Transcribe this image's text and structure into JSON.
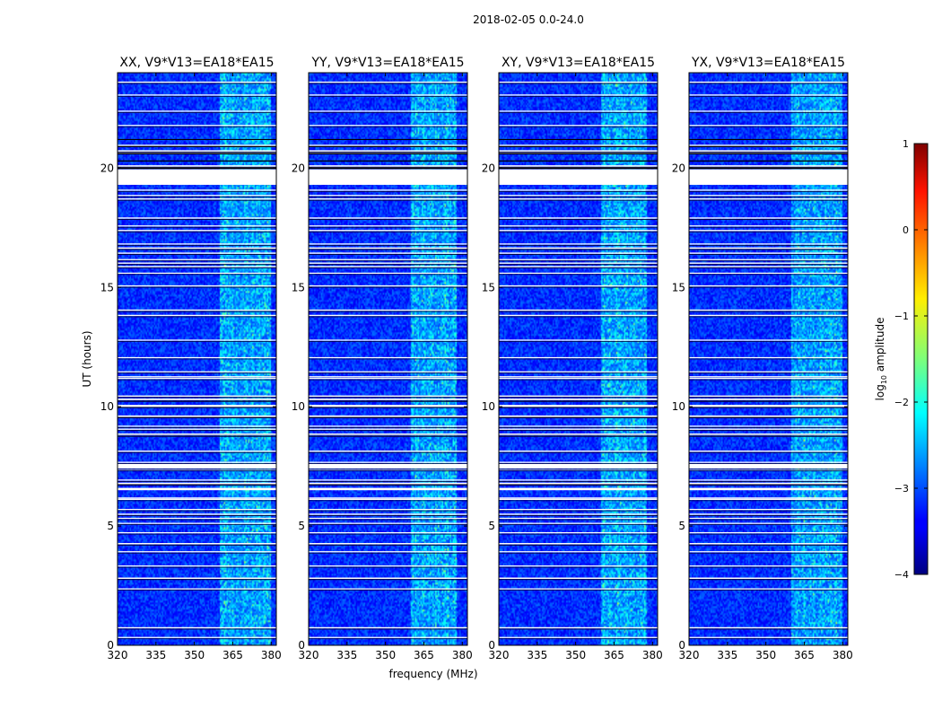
{
  "figure_title": "2018-02-05 0.0-24.0",
  "chart_data": {
    "type": "heatmap",
    "title": "2018-02-05 0.0-24.0",
    "xlabel": "frequency (MHz)",
    "ylabel": "UT (hours)",
    "xlim": [
      320,
      382
    ],
    "ylim": [
      0,
      24
    ],
    "x_ticks": [
      320,
      335,
      350,
      365,
      380
    ],
    "y_ticks": [
      0,
      5,
      10,
      15,
      20
    ],
    "panels": [
      {
        "title": "XX, V9*V13=EA18*EA15",
        "pol": "XX",
        "bright_band_MHz": [
          360,
          380
        ]
      },
      {
        "title": "YY, V9*V13=EA18*EA15",
        "pol": "YY",
        "bright_band_MHz": [
          360,
          378
        ]
      },
      {
        "title": "XY, V9*V13=EA18*EA15",
        "pol": "XY",
        "bright_band_MHz": [
          360,
          378
        ]
      },
      {
        "title": "YX, V9*V13=EA18*EA15",
        "pol": "YX",
        "bright_band_MHz": [
          360,
          380
        ]
      }
    ],
    "flagged_UT_hours": [
      [
        19.3,
        19.95
      ],
      [
        7.45,
        7.6
      ],
      [
        6.5,
        6.6
      ]
    ],
    "colorbar": {
      "label": "log10 amplitude",
      "range": [
        -4,
        1
      ],
      "ticks": [
        1,
        0,
        -1,
        -2,
        -3,
        -4
      ],
      "colormap": "jet"
    }
  }
}
